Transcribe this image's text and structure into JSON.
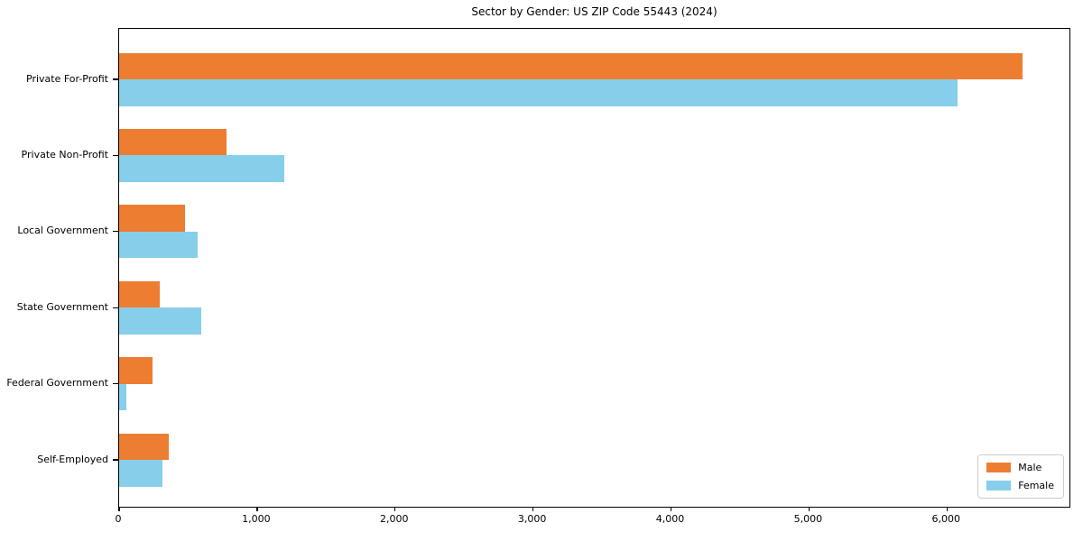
{
  "chart_data": {
    "type": "bar",
    "orientation": "horizontal",
    "title": "Sector by Gender: US ZIP Code 55443 (2024)",
    "xlabel": "",
    "ylabel": "",
    "categories": [
      "Private For-Profit",
      "Private Non-Profit",
      "Local Government",
      "State Government",
      "Federal Government",
      "Self-Employed"
    ],
    "series": [
      {
        "name": "Male",
        "color": "#ED7D31",
        "values": [
          6550,
          780,
          480,
          295,
          245,
          360
        ]
      },
      {
        "name": "Female",
        "color": "#87CEEB",
        "values": [
          6080,
          1195,
          570,
          595,
          50,
          315
        ]
      }
    ],
    "xlim": [
      0,
      6888
    ],
    "xticks": [
      0,
      1000,
      2000,
      3000,
      4000,
      5000,
      6000
    ],
    "xtick_labels": [
      "0",
      "1,000",
      "2,000",
      "3,000",
      "4,000",
      "5,000",
      "6,000"
    ],
    "grid": false,
    "legend": {
      "position": "lower right",
      "entries": [
        "Male",
        "Female"
      ]
    }
  }
}
